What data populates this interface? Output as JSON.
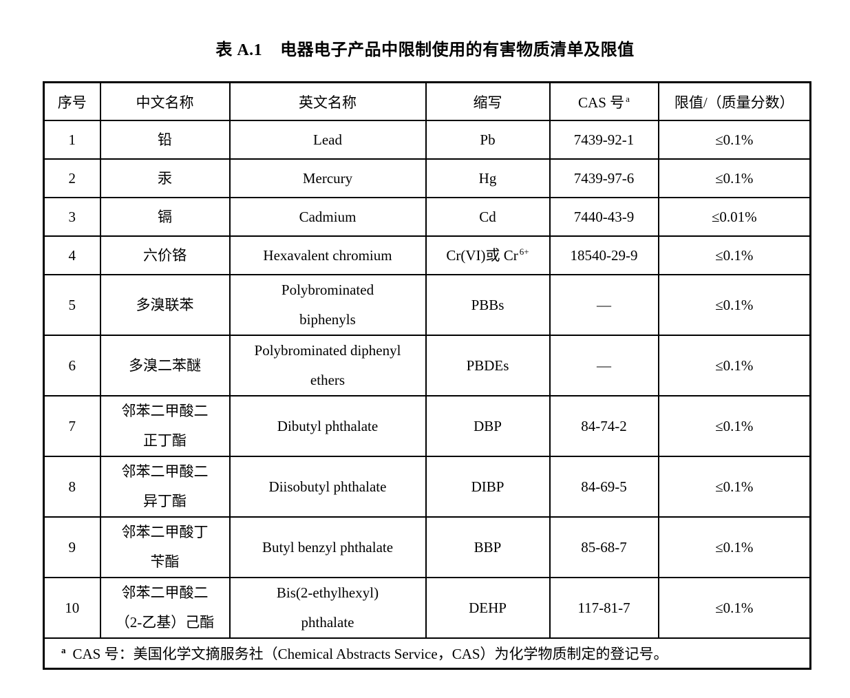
{
  "title": {
    "label": "表 A.1",
    "text": "电器电子产品中限制使用的有害物质清单及限值"
  },
  "table": {
    "headers": [
      {
        "label": "序号"
      },
      {
        "label": "中文名称"
      },
      {
        "label": "英文名称"
      },
      {
        "label": "缩写"
      },
      {
        "label": "CAS 号",
        "sup": "a"
      },
      {
        "label": "限值/（质量分数）"
      }
    ],
    "rows": [
      {
        "no": "1",
        "cn": [
          "铅"
        ],
        "en": [
          "Lead"
        ],
        "abbr": "Pb",
        "cas": "7439-92-1",
        "limit": "≤0.1%"
      },
      {
        "no": "2",
        "cn": [
          "汞"
        ],
        "en": [
          "Mercury"
        ],
        "abbr": "Hg",
        "cas": "7439-97-6",
        "limit": "≤0.1%"
      },
      {
        "no": "3",
        "cn": [
          "镉"
        ],
        "en": [
          "Cadmium"
        ],
        "abbr": "Cd",
        "cas": "7440-43-9",
        "limit": "≤0.01%"
      },
      {
        "no": "4",
        "cn": [
          "六价铬"
        ],
        "en": [
          "Hexavalent chromium"
        ],
        "abbr": "Cr(VI)或 Cr",
        "abbr_sup": "6+",
        "cas": "18540-29-9",
        "limit": "≤0.1%"
      },
      {
        "no": "5",
        "cn": [
          "多溴联苯"
        ],
        "en": [
          "Polybrominated",
          "biphenyls"
        ],
        "abbr": "PBBs",
        "cas": "—",
        "limit": "≤0.1%"
      },
      {
        "no": "6",
        "cn": [
          "多溴二苯醚"
        ],
        "en": [
          "Polybrominated diphenyl",
          "ethers"
        ],
        "abbr": "PBDEs",
        "cas": "—",
        "limit": "≤0.1%"
      },
      {
        "no": "7",
        "cn": [
          "邻苯二甲酸二",
          "正丁酯"
        ],
        "en": [
          "Dibutyl phthalate"
        ],
        "abbr": "DBP",
        "cas": "84-74-2",
        "limit": "≤0.1%"
      },
      {
        "no": "8",
        "cn": [
          "邻苯二甲酸二",
          "异丁酯"
        ],
        "en": [
          "Diisobutyl phthalate"
        ],
        "abbr": "DIBP",
        "cas": "84-69-5",
        "limit": "≤0.1%"
      },
      {
        "no": "9",
        "cn": [
          "邻苯二甲酸丁",
          "苄酯"
        ],
        "en": [
          "Butyl benzyl phthalate"
        ],
        "abbr": "BBP",
        "cas": "85-68-7",
        "limit": "≤0.1%"
      },
      {
        "no": "10",
        "cn": [
          "邻苯二甲酸二",
          "（2-乙基）己酯"
        ],
        "en": [
          "Bis(2-ethylhexyl)",
          "phthalate"
        ],
        "abbr": "DEHP",
        "cas": "117-81-7",
        "limit": "≤0.1%"
      }
    ],
    "footnote": {
      "sup": "a",
      "text": "CAS 号：美国化学文摘服务社（Chemical Abstracts Service，CAS）为化学物质制定的登记号。"
    }
  }
}
